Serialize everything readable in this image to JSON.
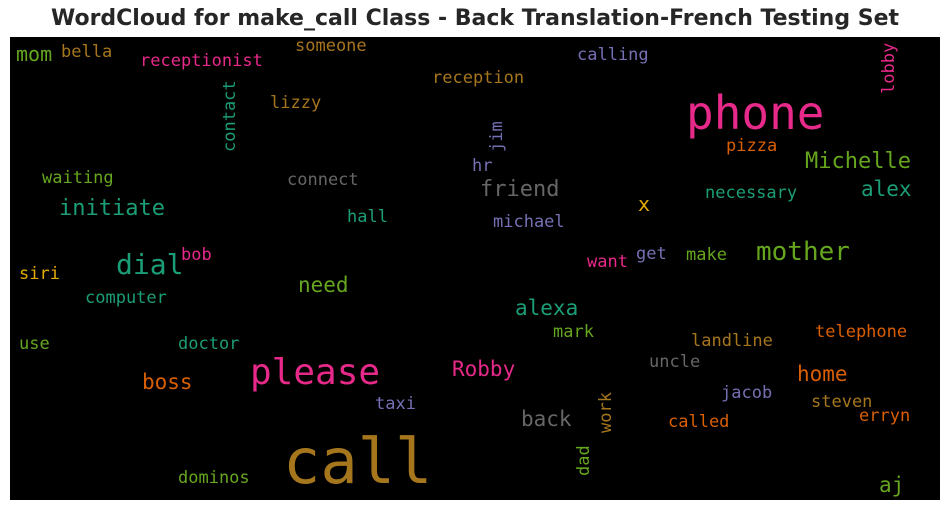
{
  "title": "WordCloud for make_call Class - Back Translation-French Testing Set",
  "words": [
    {
      "id": "call",
      "text": "call",
      "color": "#a6761d"
    },
    {
      "id": "phone",
      "text": "phone",
      "color": "#e7298a"
    },
    {
      "id": "please",
      "text": "please",
      "color": "#e7298a"
    },
    {
      "id": "mother",
      "text": "mother",
      "color": "#66a61e"
    },
    {
      "id": "dial",
      "text": "dial",
      "color": "#1b9e77"
    },
    {
      "id": "michelle",
      "text": "Michelle",
      "color": "#66a61e"
    },
    {
      "id": "initiate",
      "text": "initiate",
      "color": "#1b9e77"
    },
    {
      "id": "friend",
      "text": "friend",
      "color": "#666666"
    },
    {
      "id": "alex",
      "text": "alex",
      "color": "#1b9e77"
    },
    {
      "id": "robby",
      "text": "Robby",
      "color": "#e7298a"
    },
    {
      "id": "alexa",
      "text": "alexa",
      "color": "#1b9e77"
    },
    {
      "id": "home",
      "text": "home",
      "color": "#d95f02"
    },
    {
      "id": "boss",
      "text": "boss",
      "color": "#d95f02"
    },
    {
      "id": "back",
      "text": "back",
      "color": "#666666"
    },
    {
      "id": "need",
      "text": "need",
      "color": "#66a61e"
    },
    {
      "id": "aj",
      "text": "aj",
      "color": "#66a61e"
    },
    {
      "id": "mom",
      "text": "mom",
      "color": "#66a61e"
    },
    {
      "id": "x",
      "text": "x",
      "color": "#e6ab02"
    },
    {
      "id": "bella",
      "text": "bella",
      "color": "#a6761d"
    },
    {
      "id": "receptionist",
      "text": "receptionist",
      "color": "#e7298a"
    },
    {
      "id": "someone",
      "text": "someone",
      "color": "#a6761d"
    },
    {
      "id": "reception",
      "text": "reception",
      "color": "#a6761d"
    },
    {
      "id": "calling",
      "text": "calling",
      "color": "#7570b3"
    },
    {
      "id": "lizzy",
      "text": "lizzy",
      "color": "#a6761d"
    },
    {
      "id": "pizza",
      "text": "pizza",
      "color": "#d95f02"
    },
    {
      "id": "waiting",
      "text": "waiting",
      "color": "#66a61e"
    },
    {
      "id": "connect",
      "text": "connect",
      "color": "#666666"
    },
    {
      "id": "hr",
      "text": "hr",
      "color": "#7570b3"
    },
    {
      "id": "necessary",
      "text": "necessary",
      "color": "#1b9e77"
    },
    {
      "id": "hall",
      "text": "hall",
      "color": "#1b9e77"
    },
    {
      "id": "michael",
      "text": "michael",
      "color": "#7570b3"
    },
    {
      "id": "bob",
      "text": "bob",
      "color": "#e7298a"
    },
    {
      "id": "siri",
      "text": "siri",
      "color": "#e6ab02"
    },
    {
      "id": "want",
      "text": "want",
      "color": "#e7298a"
    },
    {
      "id": "get",
      "text": "get",
      "color": "#7570b3"
    },
    {
      "id": "make",
      "text": "make",
      "color": "#66a61e"
    },
    {
      "id": "computer",
      "text": "computer",
      "color": "#1b9e77"
    },
    {
      "id": "mark",
      "text": "mark",
      "color": "#66a61e"
    },
    {
      "id": "landline",
      "text": "landline",
      "color": "#a6761d"
    },
    {
      "id": "telephone",
      "text": "telephone",
      "color": "#d95f02"
    },
    {
      "id": "use",
      "text": "use",
      "color": "#66a61e"
    },
    {
      "id": "doctor",
      "text": "doctor",
      "color": "#1b9e77"
    },
    {
      "id": "uncle",
      "text": "uncle",
      "color": "#666666"
    },
    {
      "id": "jacob",
      "text": "jacob",
      "color": "#7570b3"
    },
    {
      "id": "taxi",
      "text": "taxi",
      "color": "#7570b3"
    },
    {
      "id": "steven",
      "text": "steven",
      "color": "#a6761d"
    },
    {
      "id": "erryn",
      "text": "erryn",
      "color": "#d95f02"
    },
    {
      "id": "called",
      "text": "called",
      "color": "#d95f02"
    },
    {
      "id": "dominos",
      "text": "dominos",
      "color": "#66a61e"
    },
    {
      "id": "contact",
      "text": "contact",
      "color": "#1b9e77"
    },
    {
      "id": "jim",
      "text": "jim",
      "color": "#7570b3"
    },
    {
      "id": "lobby",
      "text": "lobby",
      "color": "#e7298a"
    },
    {
      "id": "work",
      "text": "work",
      "color": "#a6761d"
    },
    {
      "id": "dad",
      "text": "dad",
      "color": "#66a61e"
    }
  ]
}
